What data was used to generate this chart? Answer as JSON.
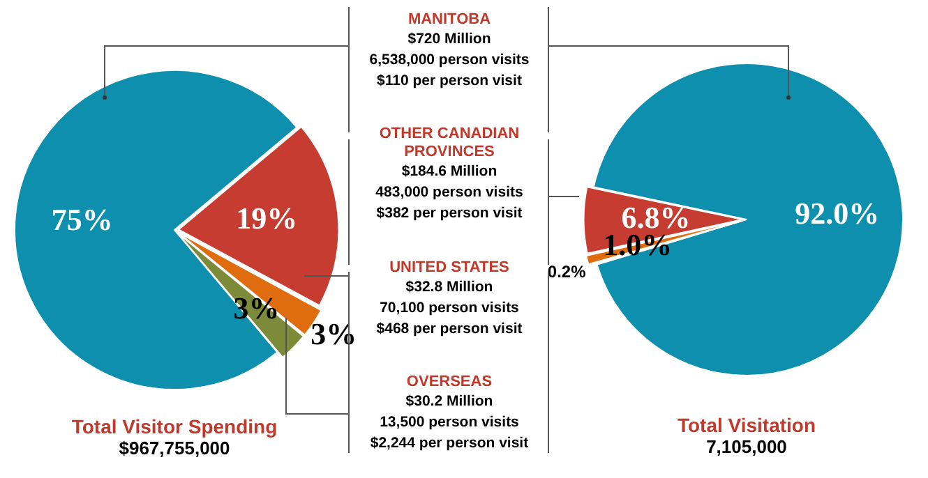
{
  "chart_data": [
    {
      "type": "pie",
      "title": "Total Visitor Spending",
      "subtitle": "$967,755,000",
      "categories": [
        null,
        null,
        null,
        null
      ],
      "values": [
        75,
        19,
        3,
        3
      ],
      "colors": [
        "#0e8fae",
        "#c63c30",
        "#e06c10",
        "#7d8a3a"
      ],
      "value_labels": [
        "75%",
        "19%",
        "3%",
        "3%"
      ]
    },
    {
      "type": "other",
      "categories": [
        "MANITOBA",
        "OTHER CANADIAN PROVINCES",
        "UNITED STATES",
        "OVERSEAS"
      ],
      "annotations": [
        "$720 Million",
        "6,538,000 person visits",
        "$110 per person visit",
        "$184.6 Million",
        "483,000 person visits",
        "$382 per person visit",
        "$32.8 Million",
        "70,100 person visits",
        "$468 per person visit",
        "$30.2 Million",
        "13,500 person visits",
        "$2,244 per person visit"
      ]
    },
    {
      "type": "pie",
      "title": "Total Visitation",
      "subtitle": "7,105,000",
      "categories": [
        null,
        null,
        null,
        null
      ],
      "values": [
        92.0,
        0.2,
        1.0,
        6.8
      ],
      "colors": [
        "#0e8fae",
        "#7d8a3a",
        "#e06c10",
        "#c63c30"
      ],
      "value_labels": [
        "92.0%",
        "0.2%",
        "1.0%",
        "6.8%"
      ]
    }
  ]
}
